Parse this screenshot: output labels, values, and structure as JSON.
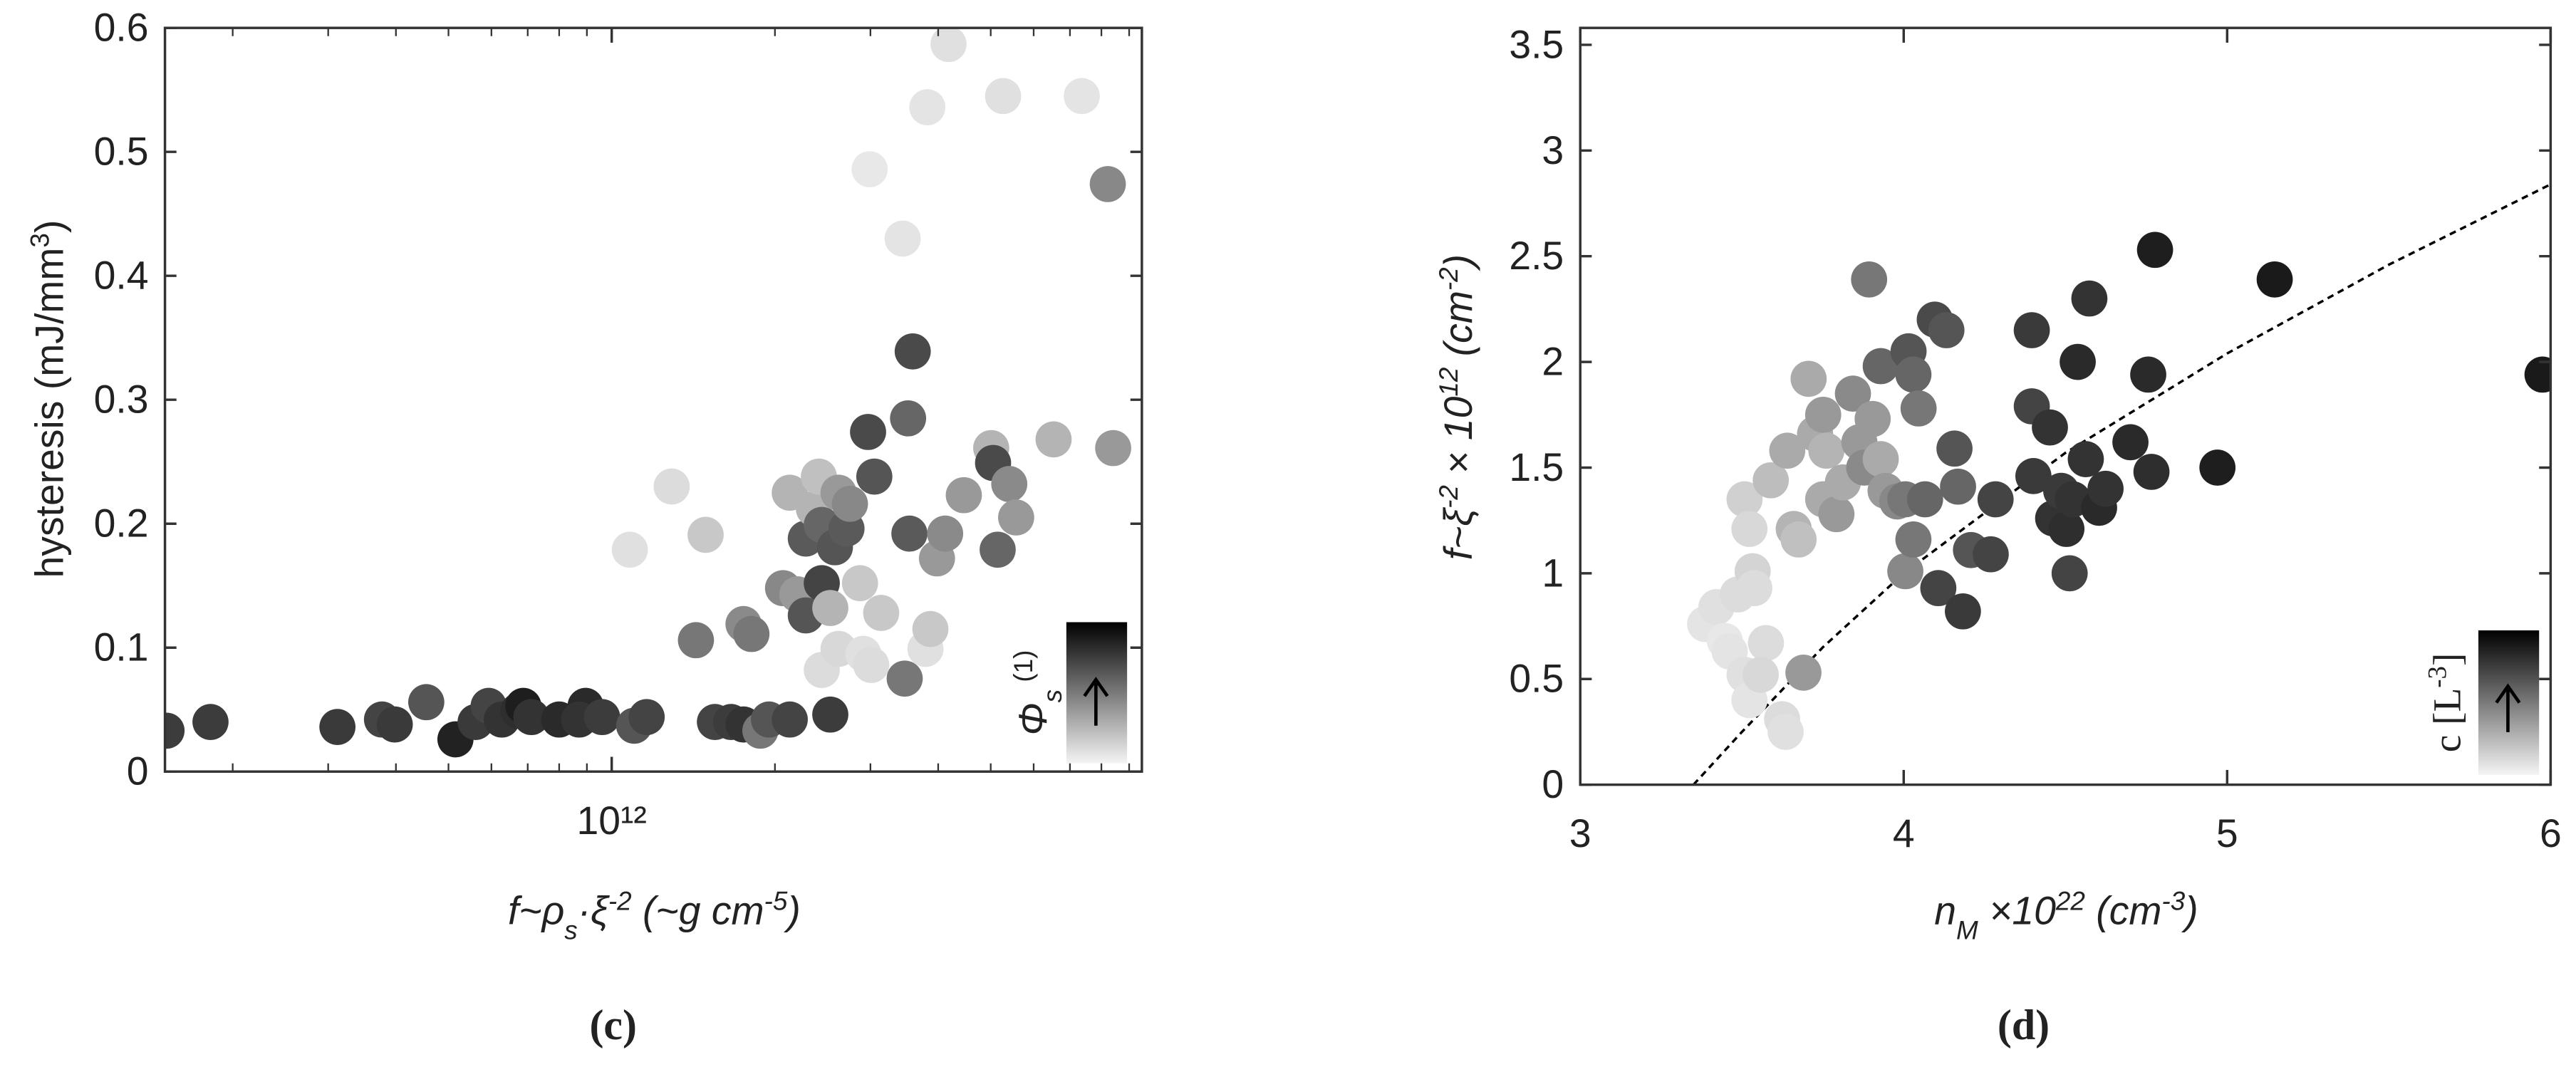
{
  "chart_data": [
    {
      "type": "scatter",
      "xscale": "log",
      "ylabel": [
        "hysteresis (mJ/mm",
        "3",
        ")"
      ],
      "xlabel": [
        "f~ρ",
        "s",
        "·ξ",
        "-2",
        " (~g cm",
        "-5",
        ")"
      ],
      "colorbar_label": [
        "Φ",
        "s",
        " (1)"
      ],
      "caption": "(c)",
      "xlim": [
        150000000000.0,
        9500000000000.0
      ],
      "ylim": [
        0,
        0.6
      ],
      "xticks": [
        {
          "value": 1000000000000.0,
          "label": "10¹²"
        }
      ],
      "xminorticks": [
        200000000000.0,
        300000000000.0,
        400000000000.0,
        500000000000.0,
        600000000000.0,
        700000000000.0,
        800000000000.0,
        900000000000.0,
        2000000000000.0,
        3000000000000.0,
        4000000000000.0,
        5000000000000.0,
        6000000000000.0,
        7000000000000.0,
        8000000000000.0,
        9000000000000.0
      ],
      "yticks": [
        0,
        0.1,
        0.2,
        0.3,
        0.4,
        0.5,
        0.6
      ],
      "x": [
        151000000000.0,
        182000000000.0,
        312000000000.0,
        377000000000.0,
        398000000000.0,
        455000000000.0,
        515000000000.0,
        561000000000.0,
        593000000000.0,
        627000000000.0,
        673000000000.0,
        687000000000.0,
        711000000000.0,
        800000000000.0,
        895000000000.0,
        871000000000.0,
        960000000000.0,
        1100000000000.0,
        1160000000000.0,
        1080000000000.0,
        1290000000000.0,
        1490000000000.0,
        1430000000000.0,
        1550000000000.0,
        1660000000000.0,
        1750000000000.0,
        1880000000000.0,
        1950000000000.0,
        2130000000000.0,
        2530000000000.0,
        1750000000000.0,
        1810000000000.0,
        2070000000000.0,
        2200000000000.0,
        2130000000000.0,
        2280000000000.0,
        2280000000000.0,
        2360000000000.0,
        2410000000000.0,
        2440000000000.0,
        2530000000000.0,
        2440000000000.0,
        2580000000000.0,
        2620000000000.0,
        2710000000000.0,
        2750000000000.0,
        2440000000000.0,
        2620000000000.0,
        2870000000000.0,
        2970000000000.0,
        3050000000000.0,
        2910000000000.0,
        3010000000000.0,
        3140000000000.0,
        2990000000000.0,
        3440000000000.0,
        3590000000000.0,
        3520000000000.0,
        3540000000000.0,
        3470000000000.0,
        3790000000000.0,
        3870000000000.0,
        3980000000000.0,
        4120000000000.0,
        3820000000000.0,
        4180000000000.0,
        4460000000000.0,
        5010000000000.0,
        5050000000000.0,
        5150000000000.0,
        5410000000000.0,
        5570000000000.0,
        5270000000000.0,
        6530000000000.0,
        7360000000000.0,
        8220000000000.0,
        8410000000000.0
      ],
      "values": [
        0.033,
        0.04,
        0.036,
        0.042,
        0.038,
        0.056,
        0.026,
        0.04,
        0.053,
        0.042,
        0.049,
        0.053,
        0.044,
        0.042,
        0.053,
        0.042,
        0.044,
        0.037,
        0.044,
        0.179,
        0.23,
        0.191,
        0.106,
        0.04,
        0.04,
        0.038,
        0.033,
        0.042,
        0.042,
        0.046,
        0.119,
        0.111,
        0.148,
        0.143,
        0.225,
        0.188,
        0.126,
        0.212,
        0.238,
        0.152,
        0.132,
        0.199,
        0.181,
        0.225,
        0.196,
        0.216,
        0.082,
        0.099,
        0.152,
        0.274,
        0.238,
        0.095,
        0.086,
        0.128,
        0.486,
        0.43,
        0.339,
        0.285,
        0.192,
        0.075,
        0.099,
        0.115,
        0.172,
        0.192,
        0.536,
        0.587,
        0.223,
        0.261,
        0.249,
        0.179,
        0.232,
        0.205,
        0.545,
        0.268,
        0.545,
        0.474,
        0.261
      ],
      "colors": [
        "#3c3c3c",
        "#3c3c3c",
        "#3a3a3a",
        "#444444",
        "#3a3a3a",
        "#555555",
        "#222222",
        "#3a3a3a",
        "#444444",
        "#333333",
        "#2e2e2e",
        "#1e1e1e",
        "#333333",
        "#2a2a2a",
        "#2a2a2a",
        "#333333",
        "#3c3c3c",
        "#555555",
        "#444444",
        "#e0e0e0",
        "#dcdcdc",
        "#c8c8c8",
        "#777777",
        "#444444",
        "#3c3c3c",
        "#333333",
        "#777777",
        "#555555",
        "#444444",
        "#3c3c3c",
        "#8a8a8a",
        "#777777",
        "#888888",
        "#999999",
        "#b4b4b4",
        "#5a5a5a",
        "#555555",
        "#b4b4b4",
        "#c0c0c0",
        "#444444",
        "#b4b4b4",
        "#666666",
        "#555555",
        "#999999",
        "#5a5a5a",
        "#888888",
        "#dcdcdc",
        "#d8d8d8",
        "#c8c8c8",
        "#4a4a4a",
        "#555555",
        "#e0e0e0",
        "#dcdcdc",
        "#c8c8c8",
        "#e8e8e8",
        "#e4e4e4",
        "#4a4a4a",
        "#666666",
        "#5a5a5a",
        "#777777",
        "#e0e0e0",
        "#c8c8c8",
        "#999999",
        "#8a8a8a",
        "#e4e4e4",
        "#e0e0e0",
        "#999999",
        "#b4b4b4",
        "#4a4a4a",
        "#666666",
        "#8a8a8a",
        "#999999",
        "#e0e0e0",
        "#b4b4b4",
        "#e4e4e4",
        "#888888",
        "#999999"
      ]
    },
    {
      "type": "scatter",
      "xscale": "linear",
      "ylabel": [
        "f~ξ",
        "-2",
        " × 10",
        "12",
        " (cm",
        "-2",
        ")"
      ],
      "xlabel": [
        "n",
        "M",
        " ×10",
        "22",
        " (cm",
        "-3",
        ")"
      ],
      "colorbar_label": [
        "c [L",
        "-3",
        "]"
      ],
      "caption": "(d)",
      "xlim": [
        3,
        6
      ],
      "ylim": [
        0,
        3.58
      ],
      "xticks": [
        3,
        4,
        5,
        6
      ],
      "yticks": [
        0,
        0.5,
        1,
        1.5,
        2,
        2.5,
        3,
        3.5
      ],
      "x": [
        3.386,
        3.421,
        3.447,
        3.487,
        3.462,
        3.508,
        3.523,
        3.533,
        3.538,
        3.508,
        3.523,
        3.574,
        3.558,
        3.624,
        3.635,
        3.589,
        3.64,
        3.66,
        3.675,
        3.69,
        3.706,
        3.726,
        3.751,
        3.761,
        3.751,
        3.792,
        3.812,
        3.843,
        3.863,
        3.878,
        3.904,
        3.929,
        3.944,
        3.893,
        3.929,
        3.98,
        4.005,
        4.015,
        4.03,
        4.046,
        4.005,
        4.03,
        4.066,
        4.096,
        4.132,
        4.107,
        4.157,
        4.168,
        4.183,
        4.208,
        4.269,
        4.284,
        4.396,
        4.396,
        4.401,
        4.452,
        4.462,
        4.487,
        4.503,
        4.523,
        4.513,
        4.538,
        4.563,
        4.574,
        4.604,
        4.624,
        4.701,
        4.756,
        4.766,
        4.777,
        4.97,
        5.147,
        5.975
      ],
      "values": [
        0.76,
        0.84,
        0.68,
        0.9,
        0.63,
        1.35,
        1.21,
        1.01,
        0.93,
        0.52,
        0.4,
        0.67,
        0.52,
        0.31,
        0.25,
        1.44,
        1.58,
        1.21,
        1.16,
        0.53,
        1.92,
        1.66,
        1.75,
        1.58,
        1.35,
        1.28,
        1.43,
        1.85,
        1.62,
        1.5,
        1.73,
        1.54,
        1.39,
        2.39,
        1.98,
        1.34,
        1.35,
        2.05,
        1.94,
        1.78,
        1.01,
        1.16,
        1.35,
        2.2,
        2.15,
        0.93,
        1.59,
        1.41,
        0.82,
        1.11,
        1.09,
        1.35,
        2.15,
        1.79,
        1.46,
        1.69,
        1.26,
        1.39,
        1.21,
        1.35,
        1.0,
        2.0,
        1.54,
        2.3,
        1.31,
        1.4,
        1.62,
        1.94,
        1.48,
        2.53,
        1.5,
        2.39,
        1.94
      ],
      "colors": [
        "#e4e4e4",
        "#e0e0e0",
        "#e8e8e8",
        "#dcdcdc",
        "#e4e4e4",
        "#d0d0d0",
        "#d8d8d8",
        "#d4d4d4",
        "#dcdcdc",
        "#e0e0e0",
        "#e4e4e4",
        "#dcdcdc",
        "#d8d8d8",
        "#dcdcdc",
        "#e0e0e0",
        "#bdbdbd",
        "#aaaaaa",
        "#b4b4b4",
        "#c0c0c0",
        "#999999",
        "#aaaaaa",
        "#aaaaaa",
        "#999999",
        "#b4b4b4",
        "#aaaaaa",
        "#999999",
        "#aaaaaa",
        "#8a8a8a",
        "#999999",
        "#8a8a8a",
        "#999999",
        "#aaaaaa",
        "#999999",
        "#777777",
        "#666666",
        "#888888",
        "#777777",
        "#555555",
        "#666666",
        "#777777",
        "#888888",
        "#777777",
        "#666666",
        "#4a4a4a",
        "#555555",
        "#444444",
        "#555555",
        "#666666",
        "#3a3a3a",
        "#555555",
        "#444444",
        "#444444",
        "#3a3a3a",
        "#444444",
        "#3a3a3a",
        "#333333",
        "#333333",
        "#3a3a3a",
        "#2e2e2e",
        "#333333",
        "#444444",
        "#2a2a2a",
        "#333333",
        "#333333",
        "#2a2a2a",
        "#333333",
        "#2a2a2a",
        "#2a2a2a",
        "#2e2e2e",
        "#1e1e1e",
        "#1e1e1e",
        "#1a1a1a",
        "#1a1a1a"
      ],
      "fit": {
        "x": [
          3.35,
          3.5,
          3.75,
          4,
          4.5,
          5,
          5.5,
          6
        ],
        "values": [
          0,
          0.25,
          0.65,
          1.0,
          1.57,
          2.04,
          2.46,
          2.84
        ]
      }
    }
  ]
}
